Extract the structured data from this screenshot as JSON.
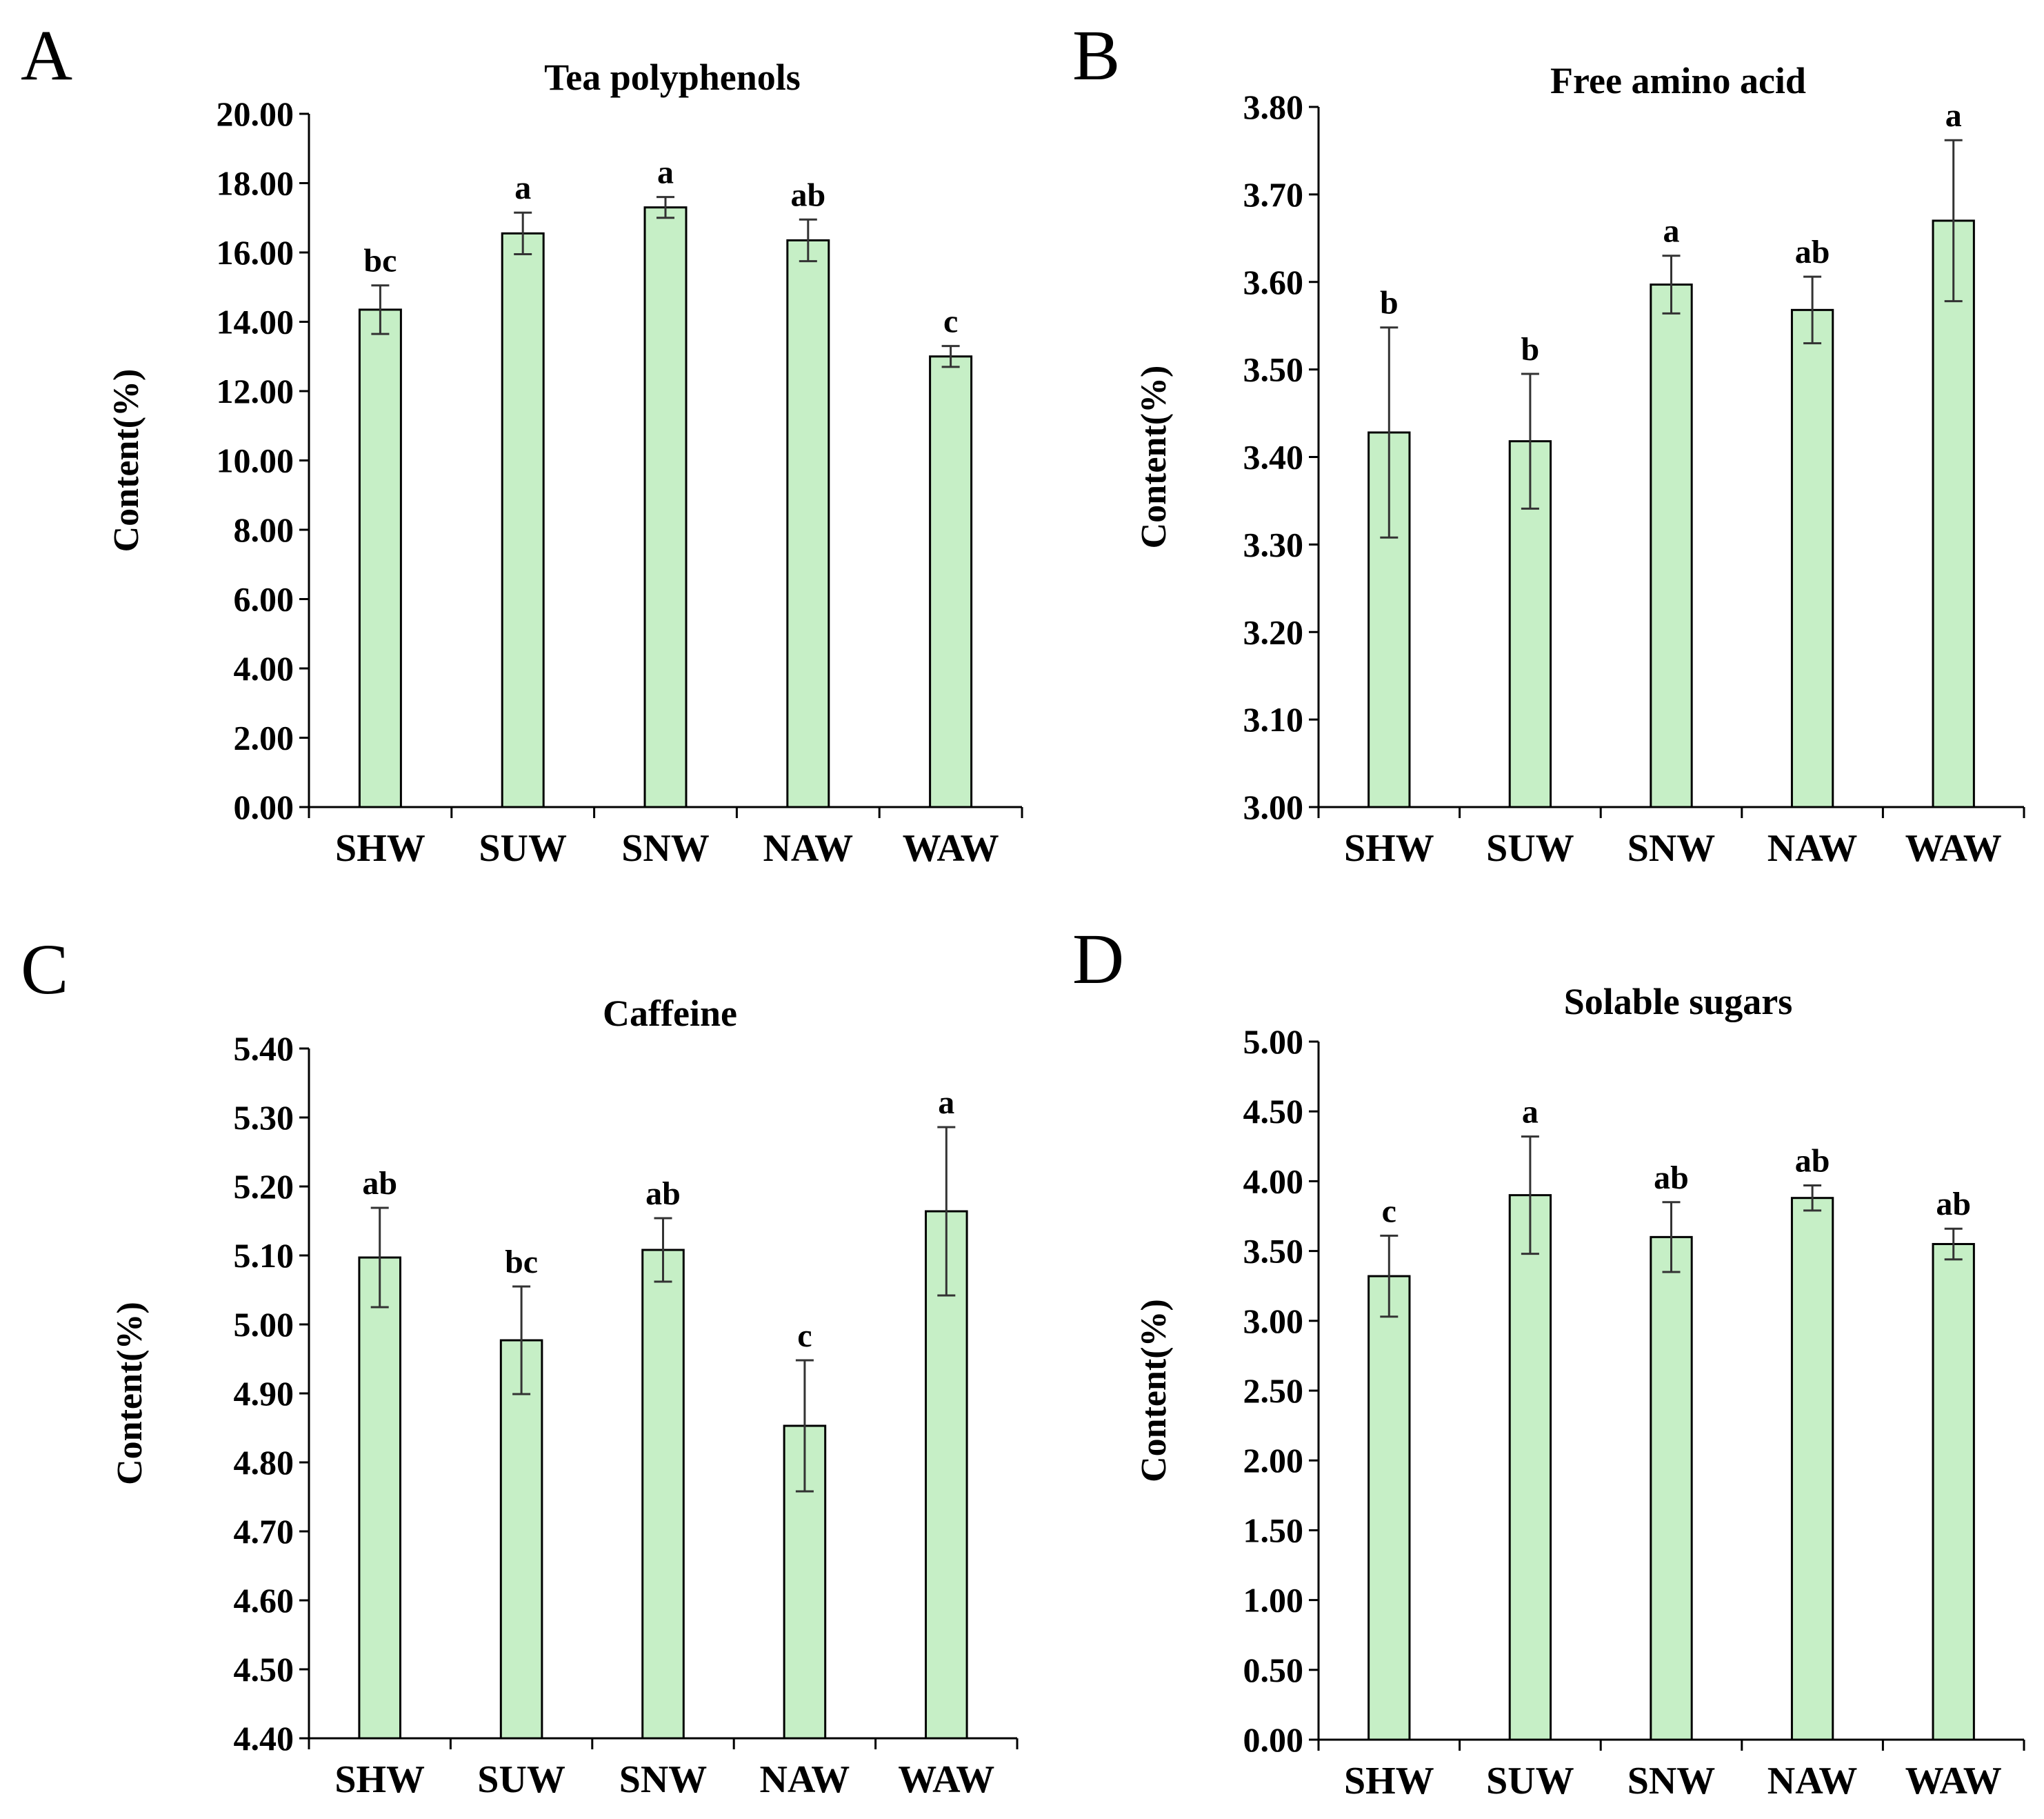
{
  "chart_data": [
    {
      "panel": "A",
      "type": "bar",
      "title": "Tea polyphenols",
      "ylabel": "Content(%)",
      "categories": [
        "SHW",
        "SUW",
        "SNW",
        "NAW",
        "WAW"
      ],
      "values": [
        14.35,
        16.55,
        17.3,
        16.35,
        13.0
      ],
      "errors": [
        0.7,
        0.6,
        0.3,
        0.6,
        0.3
      ],
      "significance": [
        "bc",
        "a",
        "a",
        "ab",
        "c"
      ],
      "ylim": [
        0,
        20
      ],
      "yticks": [
        "0.00",
        "2.00",
        "4.00",
        "6.00",
        "8.00",
        "10.00",
        "12.00",
        "14.00",
        "16.00",
        "18.00",
        "20.00"
      ],
      "bar_color": "#c6efc6",
      "grid": false
    },
    {
      "panel": "B",
      "type": "bar",
      "title": "Free amino acid",
      "ylabel": "Content(%)",
      "categories": [
        "SHW",
        "SUW",
        "SNW",
        "NAW",
        "WAW"
      ],
      "values": [
        3.428,
        3.418,
        3.597,
        3.568,
        3.67
      ],
      "errors": [
        0.12,
        0.077,
        0.033,
        0.038,
        0.092
      ],
      "significance": [
        "b",
        "b",
        "a",
        "ab",
        "a"
      ],
      "ylim": [
        3.0,
        3.8
      ],
      "yticks": [
        "3.00",
        "3.10",
        "3.20",
        "3.30",
        "3.40",
        "3.50",
        "3.60",
        "3.70",
        "3.80"
      ],
      "bar_color": "#c6efc6",
      "grid": false
    },
    {
      "panel": "C",
      "type": "bar",
      "title": "Caffeine",
      "ylabel": "Content(%)",
      "categories": [
        "SHW",
        "SUW",
        "SNW",
        "NAW",
        "WAW"
      ],
      "values": [
        5.097,
        4.977,
        5.108,
        4.853,
        5.164
      ],
      "errors": [
        0.072,
        0.078,
        0.046,
        0.095,
        0.122
      ],
      "significance": [
        "ab",
        "bc",
        "ab",
        "c",
        "a"
      ],
      "ylim": [
        4.4,
        5.4
      ],
      "yticks": [
        "4.40",
        "4.50",
        "4.60",
        "4.70",
        "4.80",
        "4.90",
        "5.00",
        "5.10",
        "5.20",
        "5.30",
        "5.40"
      ],
      "bar_color": "#c6efc6",
      "grid": false
    },
    {
      "panel": "D",
      "type": "bar",
      "title": "Solable sugars",
      "ylabel": "Content(%)",
      "categories": [
        "SHW",
        "SUW",
        "SNW",
        "NAW",
        "WAW"
      ],
      "values": [
        3.32,
        3.9,
        3.6,
        3.88,
        3.55
      ],
      "errors": [
        0.29,
        0.42,
        0.25,
        0.09,
        0.11
      ],
      "significance": [
        "c",
        "a",
        "ab",
        "ab",
        "ab"
      ],
      "ylim": [
        0,
        5
      ],
      "yticks": [
        "0.00",
        "0.50",
        "1.00",
        "1.50",
        "2.00",
        "2.50",
        "3.00",
        "3.50",
        "4.00",
        "4.50",
        "5.00"
      ],
      "bar_color": "#c6efc6",
      "grid": false
    }
  ]
}
